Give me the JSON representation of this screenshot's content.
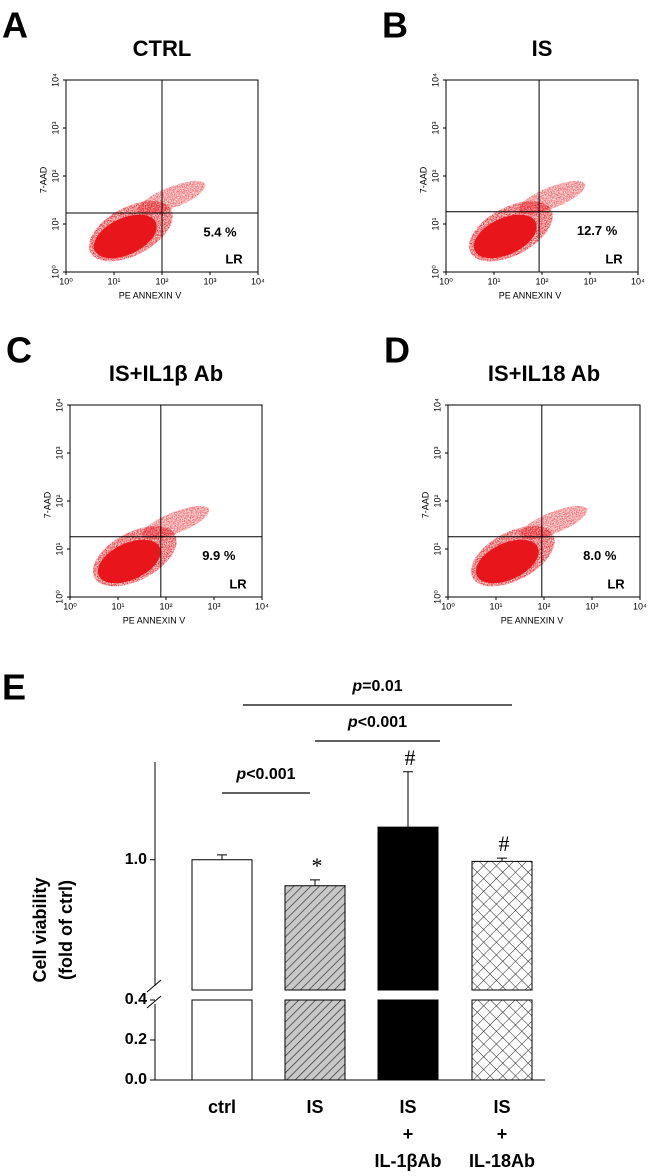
{
  "chart_data": [
    {
      "type": "quadrant",
      "panel": "A",
      "title": "CTRL",
      "xlabel": "PE ANNEXIN V",
      "ylabel": "7-AAD",
      "log_scale": true,
      "xlim": [
        1,
        10000
      ],
      "ylim": [
        1,
        10000
      ],
      "xticks": [
        {
          "value": 1,
          "label": "10⁰"
        },
        {
          "value": 10,
          "label": "10¹"
        },
        {
          "value": 100,
          "label": "10²"
        },
        {
          "value": 1000,
          "label": "10³"
        },
        {
          "value": 10000,
          "label": "10⁴"
        }
      ],
      "yticks": [
        {
          "value": 1,
          "label": "10⁰"
        },
        {
          "value": 10,
          "label": "10¹"
        },
        {
          "value": 100,
          "label": "10²"
        },
        {
          "value": 1000,
          "label": "10³"
        },
        {
          "value": 10000,
          "label": "10⁴"
        }
      ],
      "gate_x": 100,
      "gate_y": 17,
      "quadrant": "LR",
      "value": 5.4,
      "value_label": "5.4 %",
      "color": "#e8161b"
    },
    {
      "type": "quadrant",
      "panel": "B",
      "title": "IS",
      "xlabel": "PE ANNEXIN V",
      "ylabel": "7-AAD",
      "log_scale": true,
      "xlim": [
        1,
        10000
      ],
      "ylim": [
        1,
        10000
      ],
      "xticks": [
        {
          "value": 1,
          "label": "10⁰"
        },
        {
          "value": 10,
          "label": "10¹"
        },
        {
          "value": 100,
          "label": "10²"
        },
        {
          "value": 1000,
          "label": "10³"
        },
        {
          "value": 10000,
          "label": "10⁴"
        }
      ],
      "yticks": [
        {
          "value": 1,
          "label": "10⁰"
        },
        {
          "value": 10,
          "label": "10¹"
        },
        {
          "value": 100,
          "label": "10²"
        },
        {
          "value": 1000,
          "label": "10³"
        },
        {
          "value": 10000,
          "label": "10⁴"
        }
      ],
      "gate_x": 87,
      "gate_y": 18,
      "quadrant": "LR",
      "value": 12.7,
      "value_label": "12.7 %",
      "color": "#e8161b"
    },
    {
      "type": "quadrant",
      "panel": "C",
      "title": "IS+IL1β Ab",
      "xlabel": "PE ANNEXIN V",
      "ylabel": "7-AAD",
      "log_scale": true,
      "xlim": [
        1,
        10000
      ],
      "ylim": [
        1,
        10000
      ],
      "xticks": [
        {
          "value": 1,
          "label": "10⁰"
        },
        {
          "value": 10,
          "label": "10¹"
        },
        {
          "value": 100,
          "label": "10²"
        },
        {
          "value": 1000,
          "label": "10³"
        },
        {
          "value": 10000,
          "label": "10⁴"
        }
      ],
      "yticks": [
        {
          "value": 1,
          "label": "10⁰"
        },
        {
          "value": 10,
          "label": "10¹"
        },
        {
          "value": 100,
          "label": "10²"
        },
        {
          "value": 1000,
          "label": "10³"
        },
        {
          "value": 10000,
          "label": "10⁴"
        }
      ],
      "gate_x": 78,
      "gate_y": 18,
      "quadrant": "LR",
      "value": 9.9,
      "value_label": "9.9 %",
      "color": "#e8161b"
    },
    {
      "type": "quadrant",
      "panel": "D",
      "title": "IS+IL18 Ab",
      "xlabel": "PE ANNEXIN V",
      "ylabel": "7-AAD",
      "log_scale": true,
      "xlim": [
        1,
        10000
      ],
      "ylim": [
        1,
        10000
      ],
      "xticks": [
        {
          "value": 1,
          "label": "10⁰"
        },
        {
          "value": 10,
          "label": "10¹"
        },
        {
          "value": 100,
          "label": "10²"
        },
        {
          "value": 1000,
          "label": "10³"
        },
        {
          "value": 10000,
          "label": "10⁴"
        }
      ],
      "yticks": [
        {
          "value": 1,
          "label": "10⁰"
        },
        {
          "value": 10,
          "label": "10¹"
        },
        {
          "value": 100,
          "label": "10²"
        },
        {
          "value": 1000,
          "label": "10³"
        },
        {
          "value": 10000,
          "label": "10⁴"
        }
      ],
      "gate_x": 90,
      "gate_y": 18,
      "quadrant": "LR",
      "value": 8.0,
      "value_label": "8.0 %",
      "color": "#e8161b"
    },
    {
      "type": "bar",
      "panel": "E",
      "categories": [
        [
          "ctrl"
        ],
        [
          "IS"
        ],
        [
          "IS",
          "+",
          "IL-1βAb"
        ],
        [
          "IS",
          "+",
          "IL-18Ab"
        ]
      ],
      "values": [
        1.0,
        0.92,
        1.1,
        0.995
      ],
      "errors": [
        0.015,
        0.018,
        0.17,
        0.01
      ],
      "patterns": [
        "open",
        "hatch",
        "solid",
        "crosshatch"
      ],
      "markers": [
        null,
        "*",
        "#",
        "#"
      ],
      "ylabel": [
        "Cell viability",
        "(fold of ctrl)"
      ],
      "ylim": [
        0,
        1.3
      ],
      "axis_break": [
        0.4,
        0.6
      ],
      "yticks": [
        {
          "value": 0,
          "label": "0.0"
        },
        {
          "value": 0.2,
          "label": "0.2"
        },
        {
          "value": 0.4,
          "label": "0.4"
        },
        {
          "value": 1,
          "label": "1.0"
        }
      ],
      "comparisons": [
        {
          "label": [
            "p",
            "<0.001"
          ]
        },
        {
          "label": [
            "p",
            "<0.001"
          ]
        },
        {
          "label": [
            "p",
            "=0.01"
          ]
        }
      ]
    }
  ]
}
